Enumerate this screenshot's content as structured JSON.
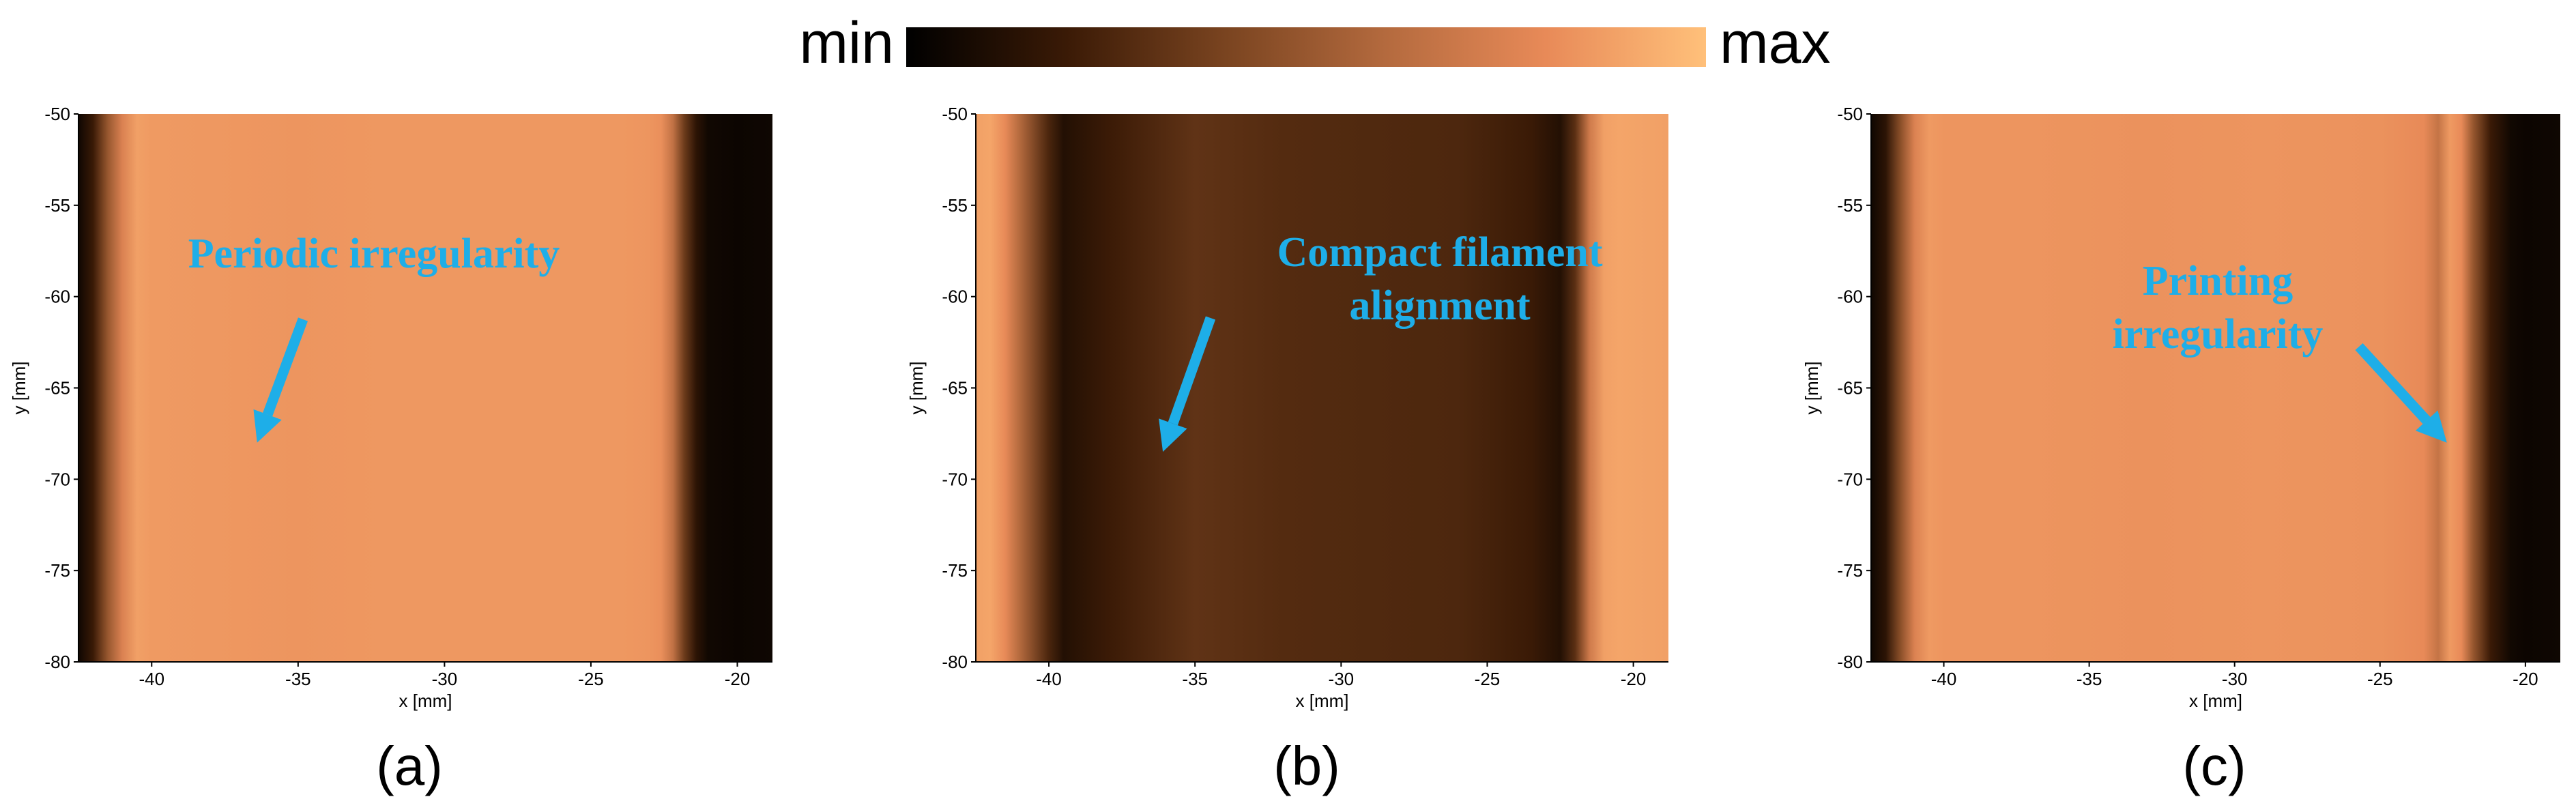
{
  "colorbar": {
    "min_label": "min",
    "max_label": "max",
    "stops": [
      "#000000",
      "#3a1a06",
      "#7a4420",
      "#b46a3e",
      "#e88a58",
      "#ffc07a"
    ]
  },
  "annotation_color": "#1EAEE8",
  "chart_data": [
    {
      "type": "heatmap",
      "panel_label": "(a)",
      "xlabel": "x [mm]",
      "ylabel": "y [mm]",
      "xlim": [
        -42.5,
        -18.8
      ],
      "ylim": [
        -80,
        -50
      ],
      "y_inverted": true,
      "xticks": [
        -40,
        -35,
        -30,
        -25,
        -20
      ],
      "yticks": [
        -50,
        -55,
        -60,
        -65,
        -70,
        -75,
        -80
      ],
      "annotation": {
        "lines": [
          "Periodic irregularity"
        ],
        "arrow_target": [
          -36.4,
          -68.0
        ]
      },
      "profile": {
        "x": [
          -42.5,
          -42.0,
          -41.5,
          -41.0,
          -40.5,
          -40.0,
          -38.0,
          -35.0,
          -32.0,
          -29.0,
          -26.0,
          -24.0,
          -23.0,
          -22.6,
          -22.2,
          -21.8,
          -21.4,
          -21.0,
          -20.0,
          -18.8
        ],
        "level": [
          0.05,
          0.2,
          0.5,
          0.75,
          0.88,
          0.86,
          0.85,
          0.84,
          0.85,
          0.85,
          0.85,
          0.85,
          0.84,
          0.82,
          0.65,
          0.35,
          0.15,
          0.06,
          0.04,
          0.05
        ]
      }
    },
    {
      "type": "heatmap",
      "panel_label": "(b)",
      "xlabel": "x [mm]",
      "ylabel": "y [mm]",
      "xlim": [
        -42.5,
        -18.8
      ],
      "ylim": [
        -80,
        -50
      ],
      "y_inverted": true,
      "xticks": [
        -40,
        -35,
        -30,
        -25,
        -20
      ],
      "yticks": [
        -50,
        -55,
        -60,
        -65,
        -70,
        -75,
        -80
      ],
      "annotation": {
        "lines": [
          "Compact filament",
          "alignment"
        ],
        "arrow_target": [
          -36.1,
          -68.5
        ]
      },
      "profile": {
        "x": [
          -42.5,
          -42.0,
          -41.5,
          -41.0,
          -40.0,
          -39.5,
          -38.0,
          -35.0,
          -32.0,
          -29.0,
          -26.0,
          -23.5,
          -22.5,
          -22.0,
          -21.5,
          -21.0,
          -20.5,
          -18.8
        ],
        "level": [
          0.88,
          0.9,
          0.8,
          0.6,
          0.25,
          0.12,
          0.2,
          0.32,
          0.28,
          0.27,
          0.26,
          0.2,
          0.12,
          0.3,
          0.7,
          0.88,
          0.9,
          0.88
        ]
      }
    },
    {
      "type": "heatmap",
      "panel_label": "(c)",
      "xlabel": "x [mm]",
      "ylabel": "y [mm]",
      "xlim": [
        -42.5,
        -18.8
      ],
      "ylim": [
        -80,
        -50
      ],
      "y_inverted": true,
      "xticks": [
        -40,
        -35,
        -30,
        -25,
        -20
      ],
      "yticks": [
        -50,
        -55,
        -60,
        -65,
        -70,
        -75,
        -80
      ],
      "annotation": {
        "lines": [
          "Printing",
          "irregularity"
        ],
        "arrow_target": [
          -22.7,
          -68.0
        ]
      },
      "profile": {
        "x": [
          -42.5,
          -42.0,
          -41.5,
          -41.0,
          -40.5,
          -40.0,
          -37.0,
          -33.0,
          -29.0,
          -25.0,
          -23.5,
          -23.0,
          -22.6,
          -22.2,
          -21.8,
          -21.2,
          -20.5,
          -20.0,
          -18.8
        ],
        "level": [
          0.05,
          0.15,
          0.45,
          0.75,
          0.86,
          0.84,
          0.84,
          0.83,
          0.84,
          0.83,
          0.8,
          0.66,
          0.86,
          0.8,
          0.5,
          0.2,
          0.06,
          0.04,
          0.05
        ]
      }
    }
  ]
}
